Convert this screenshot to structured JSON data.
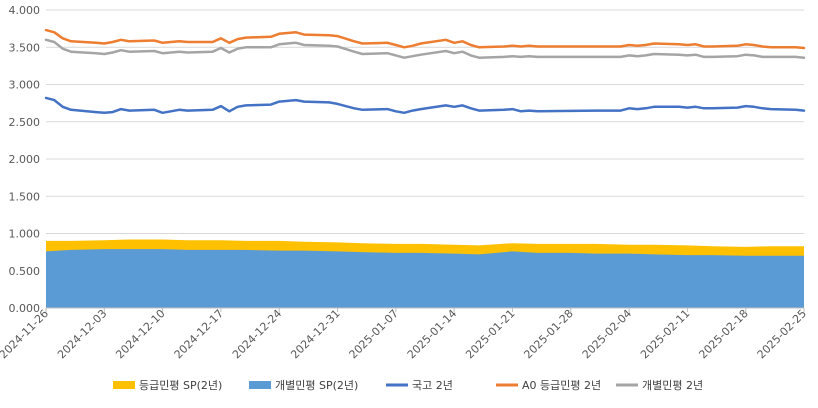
{
  "chart_data": {
    "type": "line",
    "title": "",
    "xlabel": "",
    "ylabel": "",
    "ylim": [
      0,
      4.0
    ],
    "yticks": [
      "0.000",
      "0.500",
      "1.000",
      "1.500",
      "2.000",
      "2.500",
      "3.000",
      "3.500",
      "4.000"
    ],
    "x_start": "2024-11-26",
    "x_end": "2025-02-25",
    "xticks": [
      "2024-11-26",
      "2024-12-03",
      "2024-12-10",
      "2024-12-17",
      "2024-12-24",
      "2024-12-31",
      "2025-01-07",
      "2025-01-14",
      "2025-01-21",
      "2025-01-28",
      "2025-02-04",
      "2025-02-11",
      "2025-02-18",
      "2025-02-25"
    ],
    "grid": "horizontal",
    "legend_position": "bottom",
    "colors": {
      "sp_grade": "#FFC000",
      "sp_individual": "#5B9BD5",
      "kor_treasury": "#4472C4",
      "a0_grade": "#ED7D31",
      "individual": "#A5A5A5",
      "grid": "#D9D9D9",
      "axis": "#BFBFBF"
    },
    "series": [
      {
        "name": "등급민평 SP(2년)",
        "kind": "area",
        "color": "#FFC000",
        "points": [
          [
            "2024-11-26",
            0.9
          ],
          [
            "2024-11-29",
            0.9
          ],
          [
            "2024-12-03",
            0.91
          ],
          [
            "2024-12-06",
            0.92
          ],
          [
            "2024-12-10",
            0.92
          ],
          [
            "2024-12-13",
            0.91
          ],
          [
            "2024-12-17",
            0.91
          ],
          [
            "2024-12-20",
            0.9
          ],
          [
            "2024-12-24",
            0.9
          ],
          [
            "2024-12-27",
            0.89
          ],
          [
            "2024-12-31",
            0.88
          ],
          [
            "2025-01-03",
            0.87
          ],
          [
            "2025-01-07",
            0.86
          ],
          [
            "2025-01-10",
            0.86
          ],
          [
            "2025-01-14",
            0.85
          ],
          [
            "2025-01-17",
            0.84
          ],
          [
            "2025-01-21",
            0.87
          ],
          [
            "2025-01-24",
            0.86
          ],
          [
            "2025-01-28",
            0.86
          ],
          [
            "2025-01-31",
            0.86
          ],
          [
            "2025-02-04",
            0.85
          ],
          [
            "2025-02-07",
            0.85
          ],
          [
            "2025-02-11",
            0.84
          ],
          [
            "2025-02-14",
            0.83
          ],
          [
            "2025-02-18",
            0.82
          ],
          [
            "2025-02-21",
            0.83
          ],
          [
            "2025-02-25",
            0.83
          ]
        ]
      },
      {
        "name": "개별민평 SP(2년)",
        "kind": "area",
        "color": "#5B9BD5",
        "points": [
          [
            "2024-11-26",
            0.76
          ],
          [
            "2024-11-29",
            0.78
          ],
          [
            "2024-12-03",
            0.79
          ],
          [
            "2024-12-06",
            0.79
          ],
          [
            "2024-12-10",
            0.79
          ],
          [
            "2024-12-13",
            0.78
          ],
          [
            "2024-12-17",
            0.78
          ],
          [
            "2024-12-20",
            0.78
          ],
          [
            "2024-12-24",
            0.77
          ],
          [
            "2024-12-27",
            0.77
          ],
          [
            "2024-12-31",
            0.76
          ],
          [
            "2025-01-03",
            0.75
          ],
          [
            "2025-01-07",
            0.74
          ],
          [
            "2025-01-10",
            0.74
          ],
          [
            "2025-01-14",
            0.73
          ],
          [
            "2025-01-17",
            0.72
          ],
          [
            "2025-01-21",
            0.76
          ],
          [
            "2025-01-24",
            0.74
          ],
          [
            "2025-01-28",
            0.74
          ],
          [
            "2025-01-31",
            0.73
          ],
          [
            "2025-02-04",
            0.73
          ],
          [
            "2025-02-07",
            0.72
          ],
          [
            "2025-02-11",
            0.71
          ],
          [
            "2025-02-14",
            0.71
          ],
          [
            "2025-02-18",
            0.7
          ],
          [
            "2025-02-21",
            0.7
          ],
          [
            "2025-02-25",
            0.7
          ]
        ]
      },
      {
        "name": "국고 2년",
        "kind": "line",
        "color": "#4472C4",
        "points": [
          [
            "2024-11-26",
            2.82
          ],
          [
            "2024-11-27",
            2.79
          ],
          [
            "2024-11-28",
            2.7
          ],
          [
            "2024-11-29",
            2.66
          ],
          [
            "2024-12-02",
            2.63
          ],
          [
            "2024-12-03",
            2.62
          ],
          [
            "2024-12-04",
            2.63
          ],
          [
            "2024-12-05",
            2.67
          ],
          [
            "2024-12-06",
            2.65
          ],
          [
            "2024-12-09",
            2.66
          ],
          [
            "2024-12-10",
            2.62
          ],
          [
            "2024-12-11",
            2.64
          ],
          [
            "2024-12-12",
            2.66
          ],
          [
            "2024-12-13",
            2.65
          ],
          [
            "2024-12-16",
            2.66
          ],
          [
            "2024-12-17",
            2.71
          ],
          [
            "2024-12-18",
            2.64
          ],
          [
            "2024-12-19",
            2.7
          ],
          [
            "2024-12-20",
            2.72
          ],
          [
            "2024-12-23",
            2.73
          ],
          [
            "2024-12-24",
            2.77
          ],
          [
            "2024-12-26",
            2.79
          ],
          [
            "2024-12-27",
            2.77
          ],
          [
            "2024-12-30",
            2.76
          ],
          [
            "2024-12-31",
            2.74
          ],
          [
            "2025-01-02",
            2.68
          ],
          [
            "2025-01-03",
            2.66
          ],
          [
            "2025-01-06",
            2.67
          ],
          [
            "2025-01-07",
            2.64
          ],
          [
            "2025-01-08",
            2.62
          ],
          [
            "2025-01-09",
            2.65
          ],
          [
            "2025-01-10",
            2.67
          ],
          [
            "2025-01-13",
            2.72
          ],
          [
            "2025-01-14",
            2.7
          ],
          [
            "2025-01-15",
            2.72
          ],
          [
            "2025-01-16",
            2.68
          ],
          [
            "2025-01-17",
            2.65
          ],
          [
            "2025-01-20",
            2.66
          ],
          [
            "2025-01-21",
            2.67
          ],
          [
            "2025-01-22",
            2.64
          ],
          [
            "2025-01-23",
            2.65
          ],
          [
            "2025-01-24",
            2.64
          ],
          [
            "2025-01-31",
            2.65
          ],
          [
            "2025-02-03",
            2.65
          ],
          [
            "2025-02-04",
            2.68
          ],
          [
            "2025-02-05",
            2.67
          ],
          [
            "2025-02-06",
            2.68
          ],
          [
            "2025-02-07",
            2.7
          ],
          [
            "2025-02-10",
            2.7
          ],
          [
            "2025-02-11",
            2.69
          ],
          [
            "2025-02-12",
            2.7
          ],
          [
            "2025-02-13",
            2.68
          ],
          [
            "2025-02-14",
            2.68
          ],
          [
            "2025-02-17",
            2.69
          ],
          [
            "2025-02-18",
            2.71
          ],
          [
            "2025-02-19",
            2.7
          ],
          [
            "2025-02-20",
            2.68
          ],
          [
            "2025-02-21",
            2.67
          ],
          [
            "2025-02-24",
            2.66
          ],
          [
            "2025-02-25",
            2.65
          ]
        ]
      },
      {
        "name": "A0 등급민평 2년",
        "kind": "line",
        "color": "#ED7D31",
        "points": [
          [
            "2024-11-26",
            3.73
          ],
          [
            "2024-11-27",
            3.7
          ],
          [
            "2024-11-28",
            3.62
          ],
          [
            "2024-11-29",
            3.58
          ],
          [
            "2024-12-02",
            3.56
          ],
          [
            "2024-12-03",
            3.55
          ],
          [
            "2024-12-04",
            3.57
          ],
          [
            "2024-12-05",
            3.6
          ],
          [
            "2024-12-06",
            3.58
          ],
          [
            "2024-12-09",
            3.59
          ],
          [
            "2024-12-10",
            3.56
          ],
          [
            "2024-12-11",
            3.57
          ],
          [
            "2024-12-12",
            3.58
          ],
          [
            "2024-12-13",
            3.57
          ],
          [
            "2024-12-16",
            3.57
          ],
          [
            "2024-12-17",
            3.62
          ],
          [
            "2024-12-18",
            3.56
          ],
          [
            "2024-12-19",
            3.61
          ],
          [
            "2024-12-20",
            3.63
          ],
          [
            "2024-12-23",
            3.64
          ],
          [
            "2024-12-24",
            3.68
          ],
          [
            "2024-12-26",
            3.7
          ],
          [
            "2024-12-27",
            3.67
          ],
          [
            "2024-12-30",
            3.66
          ],
          [
            "2024-12-31",
            3.65
          ],
          [
            "2025-01-02",
            3.58
          ],
          [
            "2025-01-03",
            3.55
          ],
          [
            "2025-01-06",
            3.56
          ],
          [
            "2025-01-07",
            3.53
          ],
          [
            "2025-01-08",
            3.5
          ],
          [
            "2025-01-09",
            3.52
          ],
          [
            "2025-01-10",
            3.55
          ],
          [
            "2025-01-13",
            3.6
          ],
          [
            "2025-01-14",
            3.56
          ],
          [
            "2025-01-15",
            3.58
          ],
          [
            "2025-01-16",
            3.53
          ],
          [
            "2025-01-17",
            3.5
          ],
          [
            "2025-01-20",
            3.51
          ],
          [
            "2025-01-21",
            3.52
          ],
          [
            "2025-01-22",
            3.51
          ],
          [
            "2025-01-23",
            3.52
          ],
          [
            "2025-01-24",
            3.51
          ],
          [
            "2025-01-31",
            3.51
          ],
          [
            "2025-02-03",
            3.51
          ],
          [
            "2025-02-04",
            3.53
          ],
          [
            "2025-02-05",
            3.52
          ],
          [
            "2025-02-06",
            3.53
          ],
          [
            "2025-02-07",
            3.55
          ],
          [
            "2025-02-10",
            3.54
          ],
          [
            "2025-02-11",
            3.53
          ],
          [
            "2025-02-12",
            3.54
          ],
          [
            "2025-02-13",
            3.51
          ],
          [
            "2025-02-14",
            3.51
          ],
          [
            "2025-02-17",
            3.52
          ],
          [
            "2025-02-18",
            3.54
          ],
          [
            "2025-02-19",
            3.53
          ],
          [
            "2025-02-20",
            3.51
          ],
          [
            "2025-02-21",
            3.5
          ],
          [
            "2025-02-24",
            3.5
          ],
          [
            "2025-02-25",
            3.49
          ]
        ]
      },
      {
        "name": "개별민평 2년",
        "kind": "line",
        "color": "#A5A5A5",
        "points": [
          [
            "2024-11-26",
            3.6
          ],
          [
            "2024-11-27",
            3.57
          ],
          [
            "2024-11-28",
            3.48
          ],
          [
            "2024-11-29",
            3.44
          ],
          [
            "2024-12-02",
            3.42
          ],
          [
            "2024-12-03",
            3.41
          ],
          [
            "2024-12-04",
            3.43
          ],
          [
            "2024-12-05",
            3.46
          ],
          [
            "2024-12-06",
            3.44
          ],
          [
            "2024-12-09",
            3.45
          ],
          [
            "2024-12-10",
            3.42
          ],
          [
            "2024-12-11",
            3.43
          ],
          [
            "2024-12-12",
            3.44
          ],
          [
            "2024-12-13",
            3.43
          ],
          [
            "2024-12-16",
            3.44
          ],
          [
            "2024-12-17",
            3.49
          ],
          [
            "2024-12-18",
            3.43
          ],
          [
            "2024-12-19",
            3.48
          ],
          [
            "2024-12-20",
            3.5
          ],
          [
            "2024-12-23",
            3.5
          ],
          [
            "2024-12-24",
            3.54
          ],
          [
            "2024-12-26",
            3.56
          ],
          [
            "2024-12-27",
            3.53
          ],
          [
            "2024-12-30",
            3.52
          ],
          [
            "2024-12-31",
            3.51
          ],
          [
            "2025-01-02",
            3.44
          ],
          [
            "2025-01-03",
            3.41
          ],
          [
            "2025-01-06",
            3.42
          ],
          [
            "2025-01-07",
            3.39
          ],
          [
            "2025-01-08",
            3.36
          ],
          [
            "2025-01-09",
            3.38
          ],
          [
            "2025-01-10",
            3.4
          ],
          [
            "2025-01-13",
            3.45
          ],
          [
            "2025-01-14",
            3.42
          ],
          [
            "2025-01-15",
            3.44
          ],
          [
            "2025-01-16",
            3.39
          ],
          [
            "2025-01-17",
            3.36
          ],
          [
            "2025-01-20",
            3.37
          ],
          [
            "2025-01-21",
            3.38
          ],
          [
            "2025-01-22",
            3.37
          ],
          [
            "2025-01-23",
            3.38
          ],
          [
            "2025-01-24",
            3.37
          ],
          [
            "2025-01-31",
            3.37
          ],
          [
            "2025-02-03",
            3.37
          ],
          [
            "2025-02-04",
            3.39
          ],
          [
            "2025-02-05",
            3.38
          ],
          [
            "2025-02-06",
            3.39
          ],
          [
            "2025-02-07",
            3.41
          ],
          [
            "2025-02-10",
            3.4
          ],
          [
            "2025-02-11",
            3.39
          ],
          [
            "2025-02-12",
            3.4
          ],
          [
            "2025-02-13",
            3.37
          ],
          [
            "2025-02-14",
            3.37
          ],
          [
            "2025-02-17",
            3.38
          ],
          [
            "2025-02-18",
            3.4
          ],
          [
            "2025-02-19",
            3.39
          ],
          [
            "2025-02-20",
            3.37
          ],
          [
            "2025-02-21",
            3.37
          ],
          [
            "2025-02-24",
            3.37
          ],
          [
            "2025-02-25",
            3.36
          ]
        ]
      }
    ]
  }
}
